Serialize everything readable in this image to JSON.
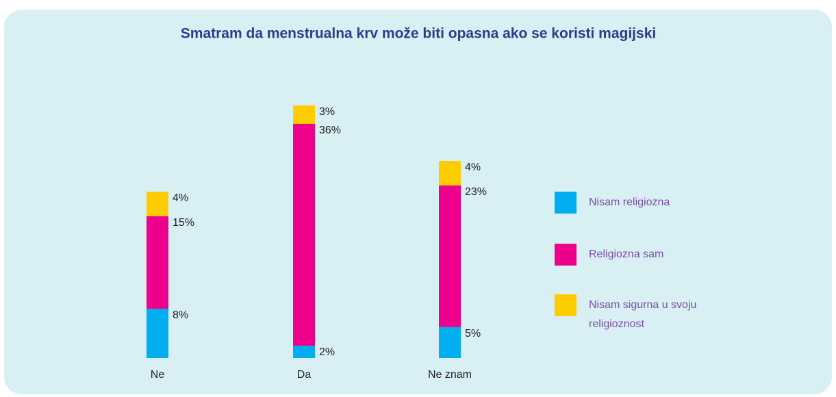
{
  "chart_data": {
    "type": "stacked_bar",
    "title": "Smatram da menstrualna krv može biti opasna ako se koristi magijski",
    "categories": [
      "Ne",
      "Da",
      "Ne znam"
    ],
    "series": [
      {
        "name": "Nisam religiozna",
        "color": "#00aeef",
        "values": [
          8,
          2,
          5
        ],
        "value_labels": [
          "8%",
          "2%",
          "5%"
        ]
      },
      {
        "name": "Religiozna sam",
        "color": "#ec008c",
        "values": [
          15,
          36,
          23
        ],
        "value_labels": [
          "15%",
          "36%",
          "23%"
        ]
      },
      {
        "name": "Nisam sigurna u svoju religioznost",
        "color": "#ffcc00",
        "values": [
          4,
          3,
          4
        ],
        "value_labels": [
          "4%",
          "3%",
          "4%"
        ]
      }
    ],
    "legend": "right"
  }
}
